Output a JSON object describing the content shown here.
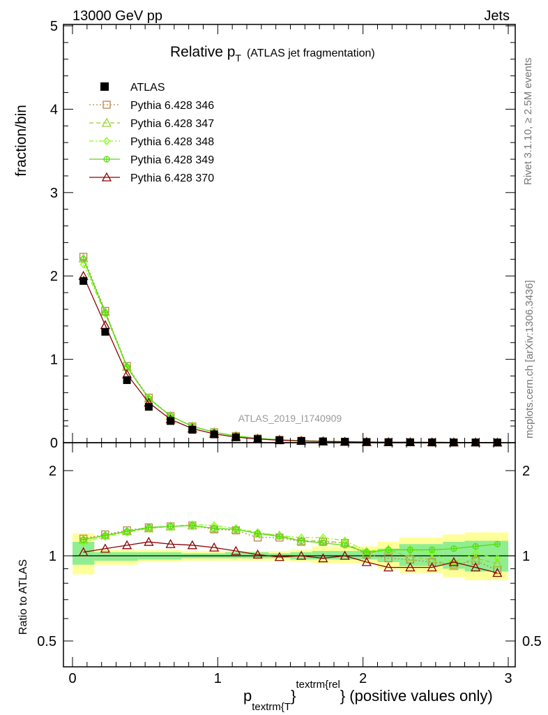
{
  "header": {
    "left": "13000 GeV pp",
    "right": "Jets"
  },
  "side": {
    "rivet": "Rivet 3.1.10, ≥ 2.5M events",
    "mcplots": "mcplots.cern.ch [arXiv:1306.3436]"
  },
  "analysis_id": "ATLAS_2019_I1740909",
  "chart_data": [
    {
      "panel": "main",
      "type": "line",
      "title_main": "Relative p",
      "title_sub": "T",
      "title_rest": "(ATLAS jet fragmentation)",
      "ylabel": "fraction/bin",
      "xlim": [
        -0.05,
        3.05
      ],
      "ylim": [
        0,
        5
      ],
      "y_ticks": [
        "0",
        "1",
        "2",
        "3",
        "4",
        "5"
      ],
      "x": [
        0.075,
        0.225,
        0.375,
        0.525,
        0.675,
        0.825,
        0.975,
        1.125,
        1.275,
        1.425,
        1.575,
        1.725,
        1.875,
        2.025,
        2.175,
        2.325,
        2.475,
        2.625,
        2.775,
        2.925
      ],
      "data": {
        "name": "ATLAS",
        "values": [
          1.94,
          1.33,
          0.75,
          0.43,
          0.26,
          0.155,
          0.1,
          0.065,
          0.043,
          0.03,
          0.021,
          0.015,
          0.011,
          0.008,
          0.006,
          0.005,
          0.004,
          0.003,
          0.003,
          0.002
        ]
      },
      "series": [
        {
          "name": "Pythia 6.428 346",
          "color": "#b8864b",
          "style": "dotted",
          "marker": "square-open",
          "values": [
            2.23,
            1.58,
            0.92,
            0.54,
            0.32,
            0.195,
            0.125,
            0.08,
            0.05,
            0.035,
            0.023,
            0.016,
            0.012,
            0.008,
            0.006,
            0.005,
            0.004,
            0.003,
            0.003,
            0.002
          ]
        },
        {
          "name": "Pythia 6.428 347",
          "color": "#9acd32",
          "style": "dashed",
          "marker": "triangle-open",
          "values": [
            2.21,
            1.57,
            0.91,
            0.53,
            0.32,
            0.196,
            0.126,
            0.081,
            0.052,
            0.036,
            0.024,
            0.017,
            0.012,
            0.008,
            0.006,
            0.005,
            0.004,
            0.003,
            0.003,
            0.002
          ]
        },
        {
          "name": "Pythia 6.428 348",
          "color": "#7fff00",
          "style": "dashdot",
          "marker": "diamond-open",
          "values": [
            2.14,
            1.55,
            0.9,
            0.53,
            0.32,
            0.197,
            0.127,
            0.082,
            0.053,
            0.036,
            0.024,
            0.017,
            0.012,
            0.008,
            0.006,
            0.005,
            0.004,
            0.003,
            0.003,
            0.002
          ]
        },
        {
          "name": "Pythia 6.428 349",
          "color": "#55dd11",
          "style": "solid",
          "marker": "circle-cross",
          "values": [
            2.2,
            1.56,
            0.91,
            0.53,
            0.32,
            0.197,
            0.126,
            0.081,
            0.051,
            0.035,
            0.023,
            0.016,
            0.012,
            0.008,
            0.006,
            0.005,
            0.004,
            0.003,
            0.003,
            0.002
          ]
        },
        {
          "name": "Pythia 6.428 370",
          "color": "#8b0000",
          "style": "solid",
          "marker": "triangle-open",
          "values": [
            2.0,
            1.41,
            0.82,
            0.48,
            0.28,
            0.17,
            0.106,
            0.067,
            0.044,
            0.03,
            0.021,
            0.015,
            0.011,
            0.008,
            0.006,
            0.005,
            0.004,
            0.003,
            0.003,
            0.002
          ]
        }
      ]
    },
    {
      "panel": "ratio",
      "type": "line",
      "ylabel": "Ratio to ATLAS",
      "xlabel_main": "p",
      "xlabel_sub": "textrm{T",
      "xlabel_sup": "textrm{rel",
      "xlabel_close": "}",
      "xlabel_rest": "} (positive values only)",
      "xlim": [
        -0.05,
        3.05
      ],
      "ylim": [
        0.35,
        2.3
      ],
      "y_ticks": [
        "0.5",
        "1",
        "2"
      ],
      "x_ticks": [
        "0",
        "1",
        "2",
        "3"
      ],
      "x": [
        0.075,
        0.225,
        0.375,
        0.525,
        0.675,
        0.825,
        0.975,
        1.125,
        1.275,
        1.425,
        1.575,
        1.725,
        1.875,
        2.025,
        2.175,
        2.325,
        2.475,
        2.625,
        2.775,
        2.925
      ],
      "band_edges": [
        0.0,
        0.15,
        0.45,
        0.75,
        1.05,
        1.35,
        1.5,
        1.65,
        2.1,
        2.25,
        2.55,
        2.7,
        3.0
      ],
      "band_inner": [
        [
          0.93,
          1.12
        ],
        [
          0.96,
          1.03
        ],
        [
          0.97,
          1.03
        ],
        [
          0.98,
          1.02
        ],
        [
          0.98,
          1.03
        ],
        [
          0.98,
          1.02
        ],
        [
          0.97,
          1.03
        ],
        [
          0.97,
          1.04
        ],
        [
          0.95,
          1.06
        ],
        [
          0.92,
          1.1
        ],
        [
          0.9,
          1.12
        ],
        [
          0.88,
          1.13
        ]
      ],
      "band_outer": [
        [
          0.86,
          1.2
        ],
        [
          0.93,
          1.05
        ],
        [
          0.95,
          1.05
        ],
        [
          0.96,
          1.04
        ],
        [
          0.96,
          1.04
        ],
        [
          0.96,
          1.04
        ],
        [
          0.95,
          1.05
        ],
        [
          0.94,
          1.08
        ],
        [
          0.9,
          1.12
        ],
        [
          0.87,
          1.16
        ],
        [
          0.84,
          1.19
        ],
        [
          0.82,
          1.21
        ]
      ],
      "series": [
        {
          "name": "Pythia 6.428 346",
          "values": [
            1.15,
            1.19,
            1.23,
            1.26,
            1.27,
            1.28,
            1.24,
            1.23,
            1.16,
            1.16,
            1.12,
            1.12,
            1.11,
            1.01,
            0.98,
            0.97,
            0.95,
            0.93,
            0.96,
            0.89
          ]
        },
        {
          "name": "Pythia 6.428 347",
          "values": [
            1.14,
            1.18,
            1.22,
            1.25,
            1.27,
            1.28,
            1.25,
            1.24,
            1.2,
            1.18,
            1.13,
            1.13,
            1.11,
            1.02,
            1.05,
            0.99,
            0.97,
            0.92,
            0.98,
            0.94
          ]
        },
        {
          "name": "Pythia 6.428 348",
          "values": [
            1.12,
            1.17,
            1.21,
            1.25,
            1.27,
            1.29,
            1.28,
            1.25,
            1.21,
            1.18,
            1.16,
            1.16,
            1.13,
            1.04,
            1.05,
            1.05,
            1.02,
            0.95,
            1.02,
            0.98
          ]
        },
        {
          "name": "Pythia 6.428 349",
          "values": [
            1.14,
            1.18,
            1.22,
            1.26,
            1.27,
            1.28,
            1.25,
            1.24,
            1.2,
            1.17,
            1.13,
            1.11,
            1.09,
            1.03,
            1.05,
            1.05,
            1.05,
            1.06,
            1.08,
            1.1
          ]
        },
        {
          "name": "Pythia 6.428 370",
          "values": [
            1.03,
            1.06,
            1.09,
            1.12,
            1.1,
            1.09,
            1.07,
            1.04,
            1.01,
            0.99,
            1.0,
            0.98,
            1.0,
            0.95,
            0.91,
            0.91,
            0.91,
            0.95,
            0.91,
            0.87
          ]
        }
      ]
    }
  ]
}
